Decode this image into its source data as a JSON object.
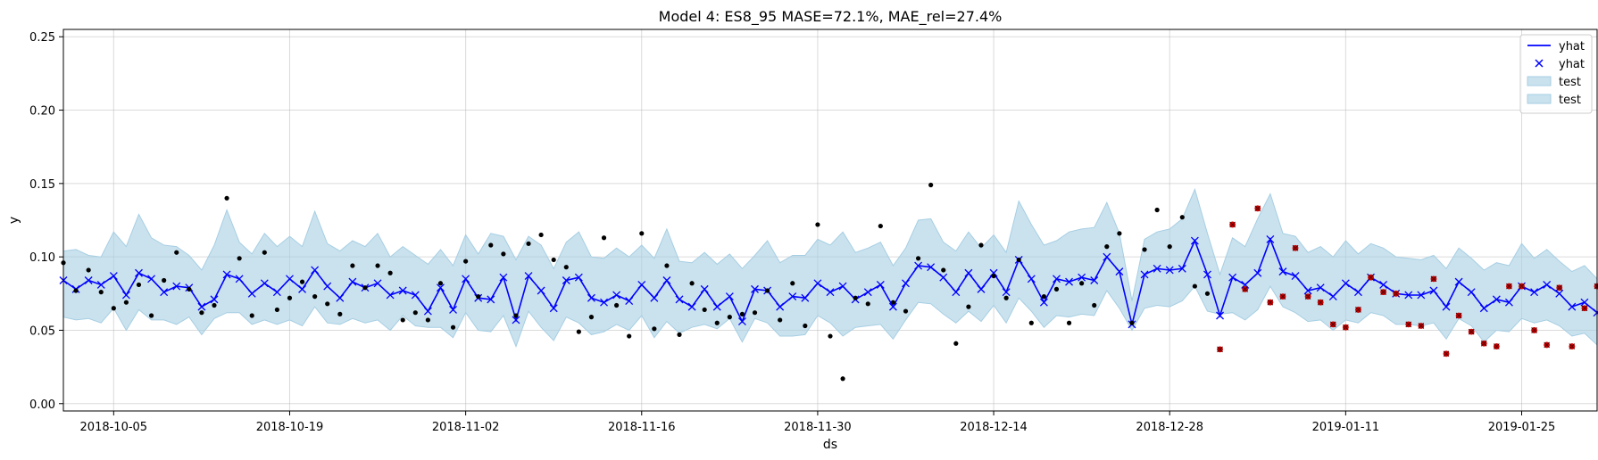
{
  "chart_data": {
    "type": "line",
    "title": "Model 4: ES8_95 MASE=72.1%, MAE_rel=27.4%",
    "xlabel": "ds",
    "ylabel": "y",
    "xlim": [
      "2018-10-01",
      "2019-01-31"
    ],
    "ylim": [
      -0.005,
      0.255
    ],
    "x_ticks": [
      "2018-10-05",
      "2018-10-19",
      "2018-11-02",
      "2018-11-16",
      "2018-11-30",
      "2018-12-14",
      "2018-12-28",
      "2019-01-11",
      "2019-01-25"
    ],
    "y_ticks": [
      "0.00",
      "0.05",
      "0.10",
      "0.15",
      "0.20",
      "0.25"
    ],
    "grid": true,
    "legend_position": "top-right",
    "legend": [
      {
        "label": "yhat",
        "kind": "line",
        "color": "#0000ff"
      },
      {
        "label": "yhat",
        "kind": "marker",
        "color": "#0000ff"
      },
      {
        "label": "test",
        "kind": "band",
        "color": "#a6cee3"
      },
      {
        "label": "test",
        "kind": "band",
        "color": "#a6cee3"
      }
    ],
    "colors": {
      "forecast": "#0000ff",
      "band": "#a6cee3",
      "actual": "#000000",
      "test_actual": "#cc0000"
    },
    "forecast": {
      "start": "2018-10-01",
      "yhat": [
        0.084,
        0.078,
        0.084,
        0.081,
        0.087,
        0.074,
        0.089,
        0.085,
        0.076,
        0.08,
        0.079,
        0.066,
        0.071,
        0.088,
        0.085,
        0.075,
        0.082,
        0.076,
        0.085,
        0.078,
        0.091,
        0.08,
        0.072,
        0.083,
        0.079,
        0.082,
        0.074,
        0.077,
        0.074,
        0.063,
        0.079,
        0.064,
        0.085,
        0.072,
        0.071,
        0.086,
        0.057,
        0.087,
        0.077,
        0.065,
        0.084,
        0.086,
        0.072,
        0.069,
        0.074,
        0.07,
        0.081,
        0.072,
        0.084,
        0.071,
        0.066,
        0.078,
        0.066,
        0.073,
        0.056,
        0.078,
        0.077,
        0.066,
        0.073,
        0.072,
        0.082,
        0.076,
        0.08,
        0.071,
        0.076,
        0.081,
        0.066,
        0.082,
        0.094,
        0.093,
        0.086,
        0.076,
        0.089,
        0.078,
        0.089,
        0.076,
        0.098,
        0.085,
        0.069,
        0.085,
        0.083,
        0.086,
        0.084,
        0.1,
        0.09,
        0.054,
        0.088,
        0.092,
        0.091,
        0.092,
        0.111,
        0.088,
        0.06,
        0.086,
        0.081,
        0.089,
        0.112,
        0.09,
        0.087,
        0.077,
        0.079,
        0.073,
        0.082,
        0.076,
        0.086,
        0.081,
        0.075,
        0.074,
        0.074,
        0.077,
        0.066,
        0.083,
        0.076,
        0.065,
        0.071,
        0.069,
        0.08,
        0.076,
        0.081,
        0.075,
        0.066,
        0.069,
        0.062
      ],
      "lower": [
        0.059,
        0.057,
        0.058,
        0.055,
        0.065,
        0.05,
        0.064,
        0.057,
        0.057,
        0.054,
        0.059,
        0.047,
        0.058,
        0.062,
        0.062,
        0.054,
        0.057,
        0.054,
        0.057,
        0.053,
        0.066,
        0.055,
        0.054,
        0.058,
        0.055,
        0.057,
        0.05,
        0.06,
        0.053,
        0.052,
        0.052,
        0.045,
        0.062,
        0.05,
        0.049,
        0.06,
        0.039,
        0.063,
        0.052,
        0.043,
        0.059,
        0.055,
        0.047,
        0.049,
        0.054,
        0.05,
        0.06,
        0.045,
        0.056,
        0.048,
        0.052,
        0.054,
        0.051,
        0.058,
        0.042,
        0.058,
        0.055,
        0.046,
        0.046,
        0.047,
        0.06,
        0.055,
        0.046,
        0.052,
        0.053,
        0.054,
        0.044,
        0.057,
        0.069,
        0.068,
        0.061,
        0.055,
        0.063,
        0.056,
        0.067,
        0.055,
        0.072,
        0.063,
        0.052,
        0.06,
        0.059,
        0.061,
        0.06,
        0.077,
        0.065,
        0.05,
        0.065,
        0.067,
        0.066,
        0.07,
        0.08,
        0.063,
        0.061,
        0.062,
        0.057,
        0.064,
        0.08,
        0.066,
        0.062,
        0.056,
        0.057,
        0.05,
        0.057,
        0.055,
        0.062,
        0.06,
        0.054,
        0.054,
        0.053,
        0.055,
        0.044,
        0.058,
        0.053,
        0.042,
        0.05,
        0.049,
        0.058,
        0.055,
        0.057,
        0.053,
        0.046,
        0.048,
        0.04
      ],
      "upper": [
        0.104,
        0.105,
        0.101,
        0.1,
        0.117,
        0.107,
        0.129,
        0.113,
        0.108,
        0.107,
        0.101,
        0.091,
        0.108,
        0.132,
        0.11,
        0.102,
        0.116,
        0.107,
        0.114,
        0.107,
        0.131,
        0.109,
        0.104,
        0.111,
        0.107,
        0.116,
        0.1,
        0.107,
        0.101,
        0.095,
        0.105,
        0.094,
        0.115,
        0.102,
        0.116,
        0.114,
        0.098,
        0.114,
        0.108,
        0.092,
        0.11,
        0.117,
        0.1,
        0.099,
        0.106,
        0.1,
        0.108,
        0.099,
        0.119,
        0.097,
        0.096,
        0.103,
        0.095,
        0.102,
        0.092,
        0.101,
        0.111,
        0.096,
        0.101,
        0.101,
        0.112,
        0.108,
        0.117,
        0.103,
        0.106,
        0.11,
        0.094,
        0.106,
        0.125,
        0.126,
        0.11,
        0.104,
        0.117,
        0.106,
        0.115,
        0.103,
        0.138,
        0.122,
        0.108,
        0.111,
        0.117,
        0.119,
        0.12,
        0.137,
        0.116,
        0.07,
        0.112,
        0.117,
        0.119,
        0.126,
        0.146,
        0.116,
        0.088,
        0.113,
        0.107,
        0.126,
        0.143,
        0.116,
        0.114,
        0.103,
        0.107,
        0.1,
        0.111,
        0.102,
        0.109,
        0.106,
        0.1,
        0.099,
        0.098,
        0.101,
        0.092,
        0.106,
        0.099,
        0.091,
        0.096,
        0.094,
        0.109,
        0.099,
        0.105,
        0.097,
        0.09,
        0.094,
        0.085
      ]
    },
    "actuals": [
      {
        "x": "2018-10-01",
        "y": 0.096
      },
      {
        "x": "2018-10-02",
        "y": 0.077
      },
      {
        "x": "2018-10-03",
        "y": 0.091
      },
      {
        "x": "2018-10-04",
        "y": 0.076
      },
      {
        "x": "2018-10-05",
        "y": 0.065
      },
      {
        "x": "2018-10-06",
        "y": 0.069
      },
      {
        "x": "2018-10-07",
        "y": 0.081
      },
      {
        "x": "2018-10-08",
        "y": 0.06
      },
      {
        "x": "2018-10-09",
        "y": 0.084
      },
      {
        "x": "2018-10-10",
        "y": 0.103
      },
      {
        "x": "2018-10-11",
        "y": 0.078
      },
      {
        "x": "2018-10-12",
        "y": 0.062
      },
      {
        "x": "2018-10-13",
        "y": 0.067
      },
      {
        "x": "2018-10-14",
        "y": 0.14
      },
      {
        "x": "2018-10-15",
        "y": 0.099
      },
      {
        "x": "2018-10-16",
        "y": 0.06
      },
      {
        "x": "2018-10-17",
        "y": 0.103
      },
      {
        "x": "2018-10-18",
        "y": 0.064
      },
      {
        "x": "2018-10-19",
        "y": 0.072
      },
      {
        "x": "2018-10-20",
        "y": 0.083
      },
      {
        "x": "2018-10-21",
        "y": 0.073
      },
      {
        "x": "2018-10-22",
        "y": 0.068
      },
      {
        "x": "2018-10-23",
        "y": 0.061
      },
      {
        "x": "2018-10-24",
        "y": 0.094
      },
      {
        "x": "2018-10-25",
        "y": 0.079
      },
      {
        "x": "2018-10-26",
        "y": 0.094
      },
      {
        "x": "2018-10-27",
        "y": 0.089
      },
      {
        "x": "2018-10-28",
        "y": 0.057
      },
      {
        "x": "2018-10-29",
        "y": 0.062
      },
      {
        "x": "2018-10-30",
        "y": 0.057
      },
      {
        "x": "2018-10-31",
        "y": 0.082
      },
      {
        "x": "2018-11-01",
        "y": 0.052
      },
      {
        "x": "2018-11-02",
        "y": 0.097
      },
      {
        "x": "2018-11-03",
        "y": 0.073
      },
      {
        "x": "2018-11-04",
        "y": 0.108
      },
      {
        "x": "2018-11-05",
        "y": 0.102
      },
      {
        "x": "2018-11-06",
        "y": 0.06
      },
      {
        "x": "2018-11-07",
        "y": 0.109
      },
      {
        "x": "2018-11-08",
        "y": 0.115
      },
      {
        "x": "2018-11-09",
        "y": 0.098
      },
      {
        "x": "2018-11-10",
        "y": 0.093
      },
      {
        "x": "2018-11-11",
        "y": 0.049
      },
      {
        "x": "2018-11-12",
        "y": 0.059
      },
      {
        "x": "2018-11-13",
        "y": 0.113
      },
      {
        "x": "2018-11-14",
        "y": 0.067
      },
      {
        "x": "2018-11-15",
        "y": 0.046
      },
      {
        "x": "2018-11-16",
        "y": 0.116
      },
      {
        "x": "2018-11-17",
        "y": 0.051
      },
      {
        "x": "2018-11-18",
        "y": 0.094
      },
      {
        "x": "2018-11-19",
        "y": 0.047
      },
      {
        "x": "2018-11-20",
        "y": 0.082
      },
      {
        "x": "2018-11-21",
        "y": 0.064
      },
      {
        "x": "2018-11-22",
        "y": 0.055
      },
      {
        "x": "2018-11-23",
        "y": 0.059
      },
      {
        "x": "2018-11-24",
        "y": 0.061
      },
      {
        "x": "2018-11-25",
        "y": 0.062
      },
      {
        "x": "2018-11-26",
        "y": 0.077
      },
      {
        "x": "2018-11-27",
        "y": 0.057
      },
      {
        "x": "2018-11-28",
        "y": 0.082
      },
      {
        "x": "2018-11-29",
        "y": 0.053
      },
      {
        "x": "2018-11-30",
        "y": 0.122
      },
      {
        "x": "2018-12-01",
        "y": 0.046
      },
      {
        "x": "2018-12-02",
        "y": 0.017
      },
      {
        "x": "2018-12-03",
        "y": 0.072
      },
      {
        "x": "2018-12-04",
        "y": 0.068
      },
      {
        "x": "2018-12-05",
        "y": 0.121
      },
      {
        "x": "2018-12-06",
        "y": 0.069
      },
      {
        "x": "2018-12-07",
        "y": 0.063
      },
      {
        "x": "2018-12-08",
        "y": 0.099
      },
      {
        "x": "2018-12-09",
        "y": 0.149
      },
      {
        "x": "2018-12-10",
        "y": 0.091
      },
      {
        "x": "2018-12-11",
        "y": 0.041
      },
      {
        "x": "2018-12-12",
        "y": 0.066
      },
      {
        "x": "2018-12-13",
        "y": 0.108
      },
      {
        "x": "2018-12-14",
        "y": 0.087
      },
      {
        "x": "2018-12-15",
        "y": 0.072
      },
      {
        "x": "2018-12-16",
        "y": 0.098
      },
      {
        "x": "2018-12-17",
        "y": 0.055
      },
      {
        "x": "2018-12-18",
        "y": 0.073
      },
      {
        "x": "2018-12-19",
        "y": 0.078
      },
      {
        "x": "2018-12-20",
        "y": 0.055
      },
      {
        "x": "2018-12-21",
        "y": 0.082
      },
      {
        "x": "2018-12-22",
        "y": 0.067
      },
      {
        "x": "2018-12-23",
        "y": 0.107
      },
      {
        "x": "2018-12-24",
        "y": 0.116
      },
      {
        "x": "2018-12-25",
        "y": 0.055
      },
      {
        "x": "2018-12-26",
        "y": 0.105
      },
      {
        "x": "2018-12-27",
        "y": 0.132
      },
      {
        "x": "2018-12-28",
        "y": 0.107
      },
      {
        "x": "2018-12-29",
        "y": 0.127
      },
      {
        "x": "2018-12-30",
        "y": 0.08
      },
      {
        "x": "2018-12-31",
        "y": 0.075
      }
    ],
    "test_actuals": [
      {
        "x": "2019-01-01",
        "y": 0.037
      },
      {
        "x": "2019-01-02",
        "y": 0.122
      },
      {
        "x": "2019-01-03",
        "y": 0.078
      },
      {
        "x": "2019-01-04",
        "y": 0.133
      },
      {
        "x": "2019-01-05",
        "y": 0.069
      },
      {
        "x": "2019-01-06",
        "y": 0.073
      },
      {
        "x": "2019-01-07",
        "y": 0.106
      },
      {
        "x": "2019-01-08",
        "y": 0.073
      },
      {
        "x": "2019-01-09",
        "y": 0.069
      },
      {
        "x": "2019-01-10",
        "y": 0.054
      },
      {
        "x": "2019-01-11",
        "y": 0.052
      },
      {
        "x": "2019-01-12",
        "y": 0.064
      },
      {
        "x": "2019-01-13",
        "y": 0.086
      },
      {
        "x": "2019-01-14",
        "y": 0.076
      },
      {
        "x": "2019-01-15",
        "y": 0.075
      },
      {
        "x": "2019-01-16",
        "y": 0.054
      },
      {
        "x": "2019-01-17",
        "y": 0.053
      },
      {
        "x": "2019-01-18",
        "y": 0.085
      },
      {
        "x": "2019-01-19",
        "y": 0.034
      },
      {
        "x": "2019-01-20",
        "y": 0.06
      },
      {
        "x": "2019-01-21",
        "y": 0.049
      },
      {
        "x": "2019-01-22",
        "y": 0.041
      },
      {
        "x": "2019-01-23",
        "y": 0.039
      },
      {
        "x": "2019-01-24",
        "y": 0.08
      },
      {
        "x": "2019-01-25",
        "y": 0.08
      },
      {
        "x": "2019-01-26",
        "y": 0.05
      },
      {
        "x": "2019-01-27",
        "y": 0.04
      },
      {
        "x": "2019-01-28",
        "y": 0.079
      },
      {
        "x": "2019-01-29",
        "y": 0.039
      },
      {
        "x": "2019-01-30",
        "y": 0.065
      },
      {
        "x": "2019-01-31",
        "y": 0.08
      }
    ]
  }
}
